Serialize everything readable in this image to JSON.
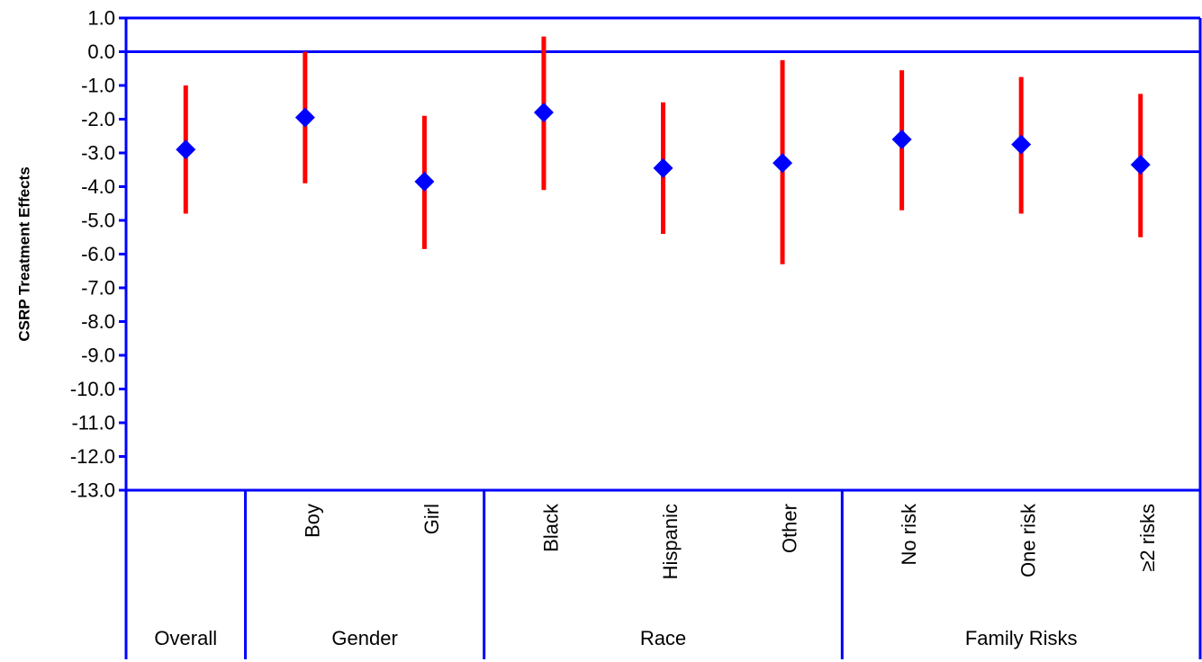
{
  "chart_data": {
    "type": "error-bar",
    "title": "",
    "ylabel": "CSRP Treatment Effects",
    "ylim": [
      -13.0,
      1.0
    ],
    "yticks": [
      1.0,
      0.0,
      -1.0,
      -2.0,
      -3.0,
      -4.0,
      -5.0,
      -6.0,
      -7.0,
      -8.0,
      -9.0,
      -10.0,
      -11.0,
      -12.0,
      -13.0
    ],
    "ytick_labels": [
      "1.0",
      "0.0",
      "-1.0",
      "-2.0",
      "-3.0",
      "-4.0",
      "-5.0",
      "-6.0",
      "-7.0",
      "-8.0",
      "-9.0",
      "-10.0",
      "-11.0",
      "-12.0",
      "-13.0"
    ],
    "reference_line": 0.0,
    "categories": [
      "Overall",
      "Boy",
      "Girl",
      "Black",
      "Hispanic",
      "Other",
      "No risk",
      "One risk",
      "≥2 risks"
    ],
    "category_labels_shown": [
      "",
      "Boy",
      "Girl",
      "Black",
      "Hispanic",
      "Other",
      "No risk",
      "One risk",
      "≥2 risks"
    ],
    "groups": [
      {
        "name": "Overall",
        "members": [
          "Overall"
        ]
      },
      {
        "name": "Gender",
        "members": [
          "Boy",
          "Girl"
        ]
      },
      {
        "name": "Race",
        "members": [
          "Black",
          "Hispanic",
          "Other"
        ]
      },
      {
        "name": "Family Risks",
        "members": [
          "No risk",
          "One risk",
          "≥2 risks"
        ]
      }
    ],
    "estimates": [
      -2.9,
      -1.95,
      -3.85,
      -1.8,
      -3.45,
      -3.3,
      -2.6,
      -2.75,
      -3.35
    ],
    "lower": [
      -4.8,
      -3.9,
      -5.85,
      -4.1,
      -5.4,
      -6.3,
      -4.7,
      -4.8,
      -5.5
    ],
    "upper": [
      -1.0,
      0.0,
      -1.9,
      0.45,
      -1.5,
      -0.25,
      -0.55,
      -0.75,
      -1.25
    ],
    "colors": {
      "axis": "#0000ff",
      "marker": "#0000ff",
      "error_bar": "#ff0000",
      "text": "#000000"
    },
    "grid": false,
    "legend": "none"
  }
}
